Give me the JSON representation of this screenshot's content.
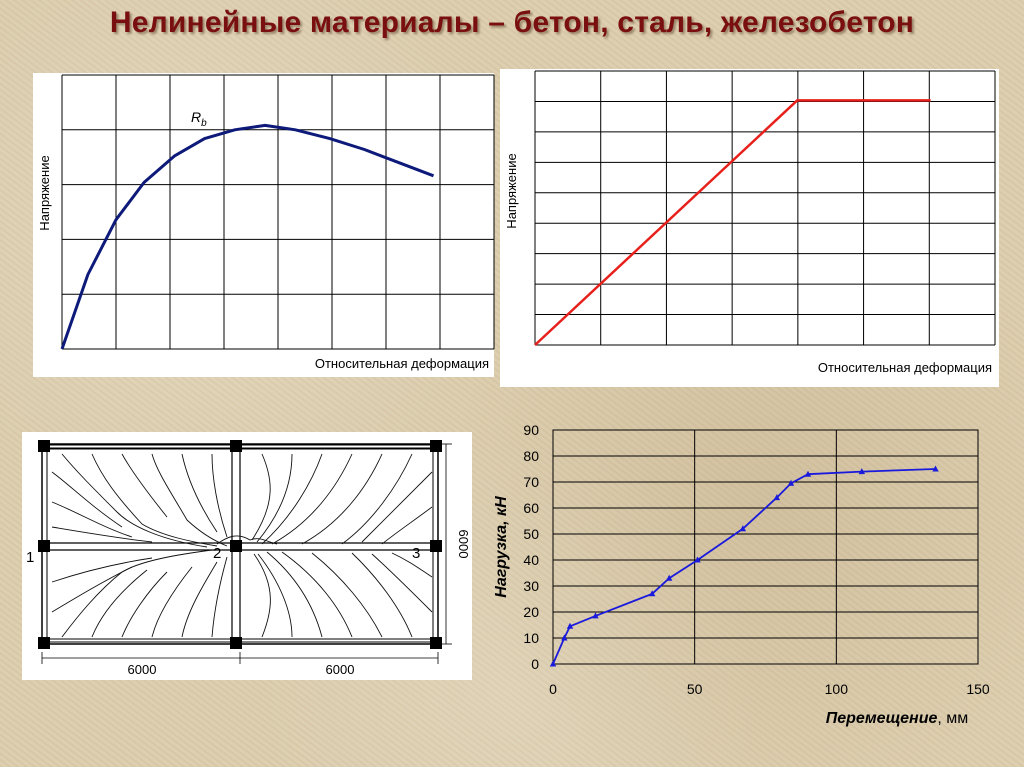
{
  "title": "Нелинейные материалы – бетон, сталь, железобетон",
  "chart_data": [
    {
      "type": "line",
      "xlabel": "Относительная деформация",
      "ylabel": "Напряжение",
      "annotation": {
        "text": "R",
        "sub": "b"
      },
      "series": [
        {
          "color": "#0d1a7a",
          "x": [
            0,
            0.06,
            0.125,
            0.19,
            0.26,
            0.33,
            0.4,
            0.47,
            0.54,
            0.62,
            0.7,
            0.78,
            0.86
          ],
          "y": [
            0,
            0.34,
            0.59,
            0.76,
            0.88,
            0.96,
            1.0,
            1.02,
            1.0,
            0.96,
            0.91,
            0.85,
            0.79
          ]
        }
      ],
      "xlim": [
        0,
        1
      ],
      "ylim": [
        0,
        1.25
      ],
      "grid": true
    },
    {
      "type": "line",
      "xlabel": "Относительная деформация",
      "ylabel": "Напряжение",
      "series": [
        {
          "color": "#e8201c",
          "x": [
            0,
            0.57,
            0.86
          ],
          "y": [
            0,
            1,
            1
          ]
        }
      ],
      "xlim": [
        0,
        1
      ],
      "ylim": [
        0,
        1.12
      ],
      "grid": true
    },
    {
      "type": "scatter",
      "xlabel": "Перемещение",
      "xlabel_unit": ", мм",
      "ylabel": "Нагрузка, кН",
      "xticks": [
        0,
        50,
        100,
        150
      ],
      "yticks": [
        0,
        10,
        20,
        30,
        40,
        50,
        60,
        70,
        80,
        90
      ],
      "xlim": [
        0,
        150
      ],
      "ylim": [
        0,
        90
      ],
      "grid": true,
      "series": [
        {
          "color": "#1a1adc",
          "marker": "triangle",
          "x": [
            0,
            4,
            6,
            15,
            35,
            41,
            51,
            67,
            79,
            84,
            90,
            109,
            135
          ],
          "y": [
            0,
            10,
            14.5,
            18.5,
            27,
            33,
            40,
            52,
            64,
            69.5,
            73,
            74,
            75
          ]
        }
      ]
    }
  ],
  "slab_drawing": {
    "dimensions": [
      "6000",
      "6000",
      "6000"
    ],
    "labels": [
      "1",
      "2",
      "3"
    ]
  }
}
